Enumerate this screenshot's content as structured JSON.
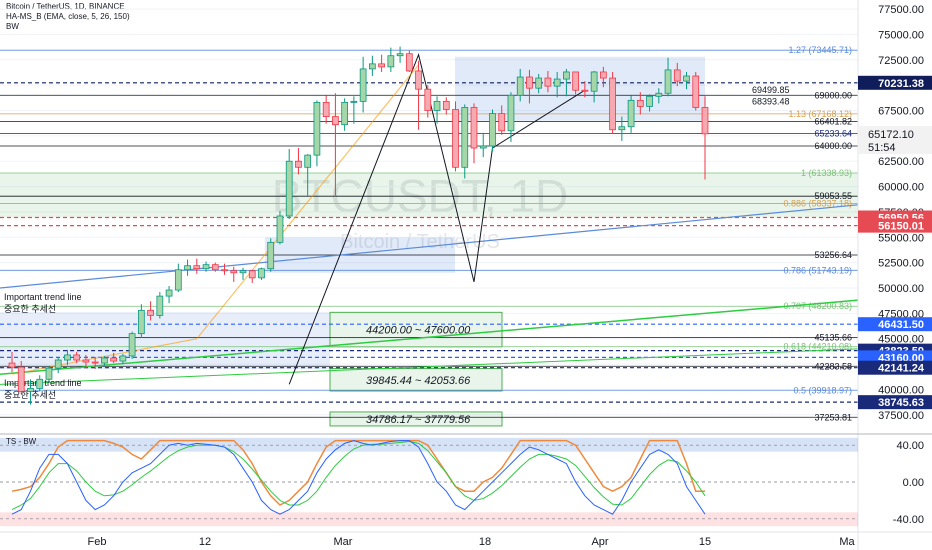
{
  "header": {
    "line1": "Bitcoin / TetherUS, 1D, BINANCE",
    "line2": "HA-MS_B (EMA, close, 5, 26, 150)",
    "line3": "BW"
  },
  "watermark": {
    "big": "BTCUSDT, 1D",
    "small": "Bitcoin / TetherUS"
  },
  "chart_data": {
    "type": "candlestick",
    "title": "Bitcoin / TetherUS, 1D, BINANCE",
    "y_ticks": [
      77500,
      75000,
      72500,
      70000,
      67500,
      65000,
      62500,
      60000,
      57500,
      55000,
      52500,
      50000,
      47500,
      45000,
      42500,
      40000,
      37500
    ],
    "y_tick_labels": [
      "77500.00",
      "75000.00",
      "72500.00",
      "70000.00",
      "67500.00",
      "65000.00",
      "62500.00",
      "60000.00",
      "57500.00",
      "55000.00",
      "52500.00",
      "50000.00",
      "47500.00",
      "45000.00",
      "42500.00",
      "40000.00",
      "37500.00"
    ],
    "ylim": [
      36000,
      78000
    ],
    "x_ticks": [
      "Feb",
      "12",
      "Mar",
      "18",
      "Apr",
      "15",
      "Ma"
    ],
    "last_price": {
      "label": "65172.10",
      "countdown": "51:54",
      "value": 65172.1
    },
    "candles": [
      [
        42600,
        43700,
        41700,
        42200
      ],
      [
        42200,
        42800,
        39500,
        39800
      ],
      [
        39800,
        41000,
        38500,
        40100
      ],
      [
        40100,
        41400,
        39800,
        41000
      ],
      [
        41000,
        42300,
        40700,
        42100
      ],
      [
        42100,
        43100,
        41600,
        42900
      ],
      [
        42900,
        43900,
        42400,
        43400
      ],
      [
        43400,
        43700,
        42600,
        42900
      ],
      [
        42900,
        43400,
        42100,
        42700
      ],
      [
        42700,
        43200,
        42000,
        42600
      ],
      [
        42600,
        43300,
        42300,
        43100
      ],
      [
        43100,
        43600,
        42600,
        42800
      ],
      [
        42800,
        43500,
        42500,
        43300
      ],
      [
        43300,
        45700,
        43000,
        45500
      ],
      [
        45500,
        48400,
        45100,
        47800
      ],
      [
        47800,
        48700,
        46800,
        47300
      ],
      [
        47300,
        49600,
        47000,
        49200
      ],
      [
        49200,
        50200,
        48500,
        49800
      ],
      [
        49800,
        52400,
        49600,
        51800
      ],
      [
        51800,
        52800,
        51200,
        52200
      ],
      [
        52200,
        52900,
        51400,
        51900
      ],
      [
        51900,
        52600,
        51600,
        52300
      ],
      [
        52300,
        52500,
        51600,
        51800
      ],
      [
        51800,
        52400,
        51300,
        51700
      ],
      [
        51700,
        52100,
        50600,
        51500
      ],
      [
        51500,
        52000,
        50800,
        51700
      ],
      [
        51700,
        51800,
        50500,
        51000
      ],
      [
        51000,
        52000,
        50800,
        51900
      ],
      [
        51900,
        54900,
        51600,
        54500
      ],
      [
        54500,
        57600,
        54300,
        57100
      ],
      [
        57100,
        63700,
        56800,
        62500
      ],
      [
        62500,
        63800,
        61200,
        61900
      ],
      [
        61900,
        63200,
        59100,
        63100
      ],
      [
        63100,
        68500,
        62000,
        68300
      ],
      [
        68300,
        69000,
        66200,
        66900
      ],
      [
        66900,
        69200,
        59000,
        66100
      ],
      [
        66100,
        68700,
        65500,
        68300
      ],
      [
        68300,
        68900,
        66200,
        68400
      ],
      [
        68400,
        72800,
        67300,
        71600
      ],
      [
        71600,
        72900,
        70900,
        72100
      ],
      [
        72100,
        73000,
        71300,
        71800
      ],
      [
        71800,
        73700,
        71300,
        72900
      ],
      [
        72900,
        73800,
        72200,
        73100
      ],
      [
        73100,
        73400,
        71300,
        71400
      ],
      [
        71400,
        72400,
        65600,
        69600
      ],
      [
        69600,
        70000,
        66800,
        67500
      ],
      [
        67500,
        68900,
        66200,
        68400
      ],
      [
        68400,
        68800,
        67100,
        67600
      ],
      [
        67600,
        68400,
        61500,
        61900
      ],
      [
        61900,
        68100,
        60800,
        67800
      ],
      [
        67800,
        68200,
        62300,
        63800
      ],
      [
        63800,
        65300,
        62900,
        64000
      ],
      [
        64000,
        67600,
        63500,
        67200
      ],
      [
        67200,
        68000,
        65100,
        65500
      ],
      [
        65500,
        69300,
        64400,
        69000
      ],
      [
        69000,
        71600,
        68400,
        70800
      ],
      [
        70800,
        71500,
        68200,
        69700
      ],
      [
        69700,
        71100,
        69200,
        70700
      ],
      [
        70700,
        71400,
        69300,
        69900
      ],
      [
        69900,
        71300,
        68800,
        70600
      ],
      [
        70600,
        71600,
        68900,
        71300
      ],
      [
        71300,
        71300,
        69100,
        69500
      ],
      [
        69500,
        70400,
        68800,
        69400
      ],
      [
        69400,
        71400,
        68300,
        71300
      ],
      [
        71300,
        71800,
        69800,
        70700
      ],
      [
        70700,
        71300,
        65200,
        65600
      ],
      [
        65600,
        66900,
        64500,
        65900
      ],
      [
        65900,
        69000,
        65300,
        68500
      ],
      [
        68500,
        69300,
        67100,
        67900
      ],
      [
        67900,
        69100,
        67400,
        68900
      ],
      [
        68900,
        69700,
        68200,
        69200
      ],
      [
        69200,
        72700,
        68900,
        71500
      ],
      [
        71500,
        72200,
        69900,
        70400
      ],
      [
        70400,
        71300,
        69600,
        70900
      ],
      [
        70900,
        71300,
        67500,
        67800
      ],
      [
        67800,
        68900,
        60700,
        65200
      ]
    ],
    "levels": [
      {
        "label": "1.27 (73445.71)",
        "value": 73445.71,
        "color": "#5b8bd9",
        "badge": false
      },
      {
        "label": "70231.38",
        "value": 70231.38,
        "color": "#0f1e5a",
        "badge": true
      },
      {
        "label": "69000.00",
        "value": 69000,
        "color": "#131722",
        "badge": false
      },
      {
        "label": "1.13 (67168.12)",
        "value": 67168.12,
        "color": "#d4a055",
        "badge": false
      },
      {
        "label": "66401.82",
        "value": 66401.82,
        "color": "#131722",
        "badge": false
      },
      {
        "label": "65233.64",
        "value": 65233.64,
        "color": "#1a2a7a",
        "badge": false
      },
      {
        "label": "64000.00",
        "value": 64000,
        "color": "#131722",
        "badge": false
      },
      {
        "label": "1 (61338.93)",
        "value": 61338.93,
        "color": "#7ac27a",
        "badge": false
      },
      {
        "label": "59053.55",
        "value": 59053.55,
        "color": "#131722",
        "badge": false
      },
      {
        "label": "0.886 (58337.18)",
        "value": 58337.18,
        "color": "#d4a055",
        "badge": false
      },
      {
        "label": "56950.56",
        "value": 56950.56,
        "color": "#e64a53",
        "badge": true
      },
      {
        "label": "56150.01",
        "value": 56150.01,
        "color": "#e64a53",
        "badge": true
      },
      {
        "label": "53256.64",
        "value": 53256.64,
        "color": "#131722",
        "badge": false
      },
      {
        "label": "0.786 (51743.19)",
        "value": 51743.19,
        "color": "#5b8bd9",
        "badge": false
      },
      {
        "label": "0.707 (48200.83)",
        "value": 48200.83,
        "color": "#7ac27a",
        "badge": false
      },
      {
        "label": "46431.50",
        "value": 46431.5,
        "color": "#2962ff",
        "badge": true
      },
      {
        "label": "45135.66",
        "value": 45135.66,
        "color": "#131722",
        "badge": false
      },
      {
        "label": "0.618 (44210.08)",
        "value": 44210.08,
        "color": "#7ac27a",
        "badge": false
      },
      {
        "label": "43823.59",
        "value": 43823.59,
        "color": "#1a2a7a",
        "badge": true
      },
      {
        "label": "43160.00",
        "value": 43160,
        "color": "#2962ff",
        "badge": true
      },
      {
        "label": "42283.58",
        "value": 42283.58,
        "color": "#131722",
        "badge": false
      },
      {
        "label": "42141.24",
        "value": 42141.24,
        "color": "#1a2a7a",
        "badge": true
      },
      {
        "label": "0.5 (39918.97)",
        "value": 39918.97,
        "color": "#5b8bd9",
        "badge": false
      },
      {
        "label": "38745.63",
        "value": 38745.63,
        "color": "#1a2a7a",
        "badge": true
      },
      {
        "label": "37253.81",
        "value": 37253.81,
        "color": "#131722",
        "badge": false
      }
    ],
    "small_labels": [
      {
        "label": "69499.85",
        "value": 69499.85
      },
      {
        "label": "68393.48",
        "value": 68393.48
      }
    ],
    "zones": [
      {
        "label": "44200.00 ~ 47600.00",
        "low": 44200,
        "high": 47600
      },
      {
        "label": "39845.44 ~ 42053.66",
        "low": 39845.44,
        "high": 42053.66
      },
      {
        "label": "34786.17 ~ 37779.56",
        "low": 34786.17,
        "high": 37779.56
      }
    ],
    "trend_labels": [
      "Important trend line",
      "중요한 추세선",
      "Important trend line",
      "중요한 추세선"
    ],
    "oscillator": {
      "name": "TS - BW",
      "y_ticks": [
        40,
        0,
        -40
      ],
      "y_tick_labels": [
        "40.00",
        "0.00",
        "-40.00"
      ],
      "ylim": [
        -50,
        50
      ],
      "blue": [
        -35,
        -30,
        -10,
        15,
        30,
        30,
        20,
        0,
        -20,
        -30,
        -25,
        -15,
        0,
        10,
        15,
        20,
        30,
        40,
        42,
        40,
        42,
        41,
        40,
        38,
        30,
        15,
        0,
        -20,
        -30,
        -35,
        -30,
        -20,
        -10,
        10,
        25,
        35,
        42,
        45,
        42,
        40,
        42,
        44,
        45,
        45,
        38,
        20,
        0,
        -10,
        -25,
        -30,
        -20,
        -10,
        0,
        10,
        20,
        30,
        38,
        35,
        30,
        25,
        20,
        0,
        -15,
        -25,
        -30,
        -35,
        -20,
        0,
        15,
        30,
        35,
        30,
        20,
        -5,
        -20,
        -35
      ],
      "green": [
        -30,
        -25,
        -18,
        -5,
        10,
        20,
        20,
        12,
        0,
        -10,
        -15,
        -14,
        -10,
        -3,
        5,
        12,
        20,
        28,
        34,
        38,
        40,
        40,
        40,
        38,
        33,
        25,
        14,
        2,
        -10,
        -20,
        -25,
        -25,
        -20,
        -10,
        5,
        18,
        28,
        36,
        40,
        41,
        41,
        42,
        43,
        44,
        42,
        34,
        22,
        10,
        -5,
        -15,
        -20,
        -18,
        -12,
        -4,
        6,
        16,
        25,
        30,
        30,
        28,
        25,
        18,
        6,
        -6,
        -16,
        -24,
        -25,
        -18,
        -5,
        8,
        18,
        24,
        22,
        12,
        0,
        -15
      ],
      "orange": [
        -10,
        -8,
        -5,
        5,
        20,
        38,
        45,
        45,
        45,
        45,
        45,
        42,
        38,
        30,
        25,
        35,
        45,
        45,
        45,
        45,
        45,
        45,
        45,
        45,
        45,
        35,
        20,
        0,
        -15,
        -25,
        -20,
        -10,
        0,
        20,
        38,
        45,
        45,
        45,
        45,
        45,
        45,
        45,
        45,
        45,
        45,
        40,
        25,
        10,
        -5,
        -10,
        -10,
        0,
        5,
        15,
        30,
        45,
        45,
        45,
        45,
        45,
        45,
        40,
        25,
        10,
        -5,
        -10,
        -5,
        5,
        25,
        45,
        45,
        45,
        45,
        20,
        -10,
        -10
      ]
    }
  }
}
